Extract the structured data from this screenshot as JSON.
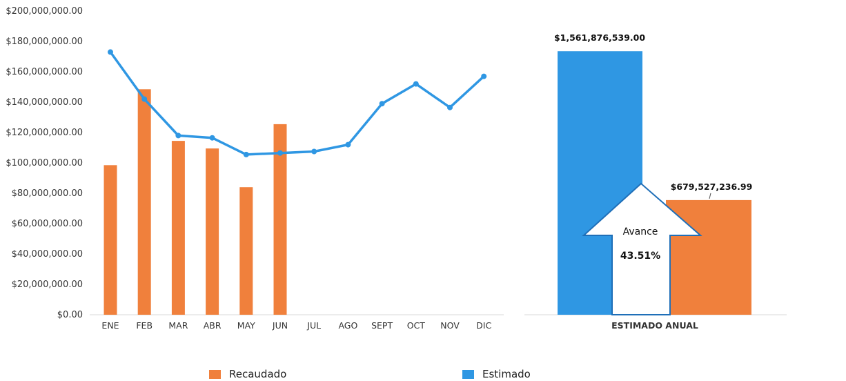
{
  "chart_data": [
    {
      "type": "bar+line",
      "categories": [
        "ENE",
        "FEB",
        "MAR",
        "ABR",
        "MAY",
        "JUN",
        "JUL",
        "AGO",
        "SEPT",
        "OCT",
        "NOV",
        "DIC"
      ],
      "y_tick_labels": [
        "$0.00",
        "$20,000,000.00",
        "$40,000,000.00",
        "$60,000,000.00",
        "$80,000,000.00",
        "$100,000,000.00",
        "$120,000,000.00",
        "$140,000,000.00",
        "$160,000,000.00",
        "$180,000,000.00",
        "$200,000,000.00"
      ],
      "ylim": [
        0,
        200000000
      ],
      "y_step": 20000000,
      "series": [
        {
          "name": "Recaudado",
          "kind": "bar",
          "color": "#f0803c",
          "values": [
            98500000,
            148500000,
            114500000,
            109500000,
            84000000,
            125500000,
            null,
            null,
            null,
            null,
            null,
            null
          ]
        },
        {
          "name": "Estimado",
          "kind": "line",
          "color": "#2f97e3",
          "values": [
            173000000,
            142000000,
            118000000,
            116500000,
            105500000,
            106500000,
            107500000,
            112000000,
            139000000,
            152000000,
            136500000,
            157000000
          ]
        }
      ],
      "grid": false
    },
    {
      "type": "bar",
      "categories": [
        "ESTIMADO ANUAL"
      ],
      "ylim": [
        0,
        1800000000
      ],
      "bars": [
        {
          "series": "Estimado",
          "value": 1561876539.0,
          "label": "$1,561,876,539.00",
          "color": "#2f97e3"
        },
        {
          "series": "Recaudado",
          "value": 679527236.99,
          "label": "$679,527,236.99",
          "color": "#f0803c"
        }
      ],
      "annotation": {
        "title": "Avance",
        "value": "43.51%"
      }
    }
  ],
  "legend": [
    {
      "name": "Recaudado",
      "color": "#f0803c"
    },
    {
      "name": "Estimado",
      "color": "#2f97e3"
    }
  ]
}
